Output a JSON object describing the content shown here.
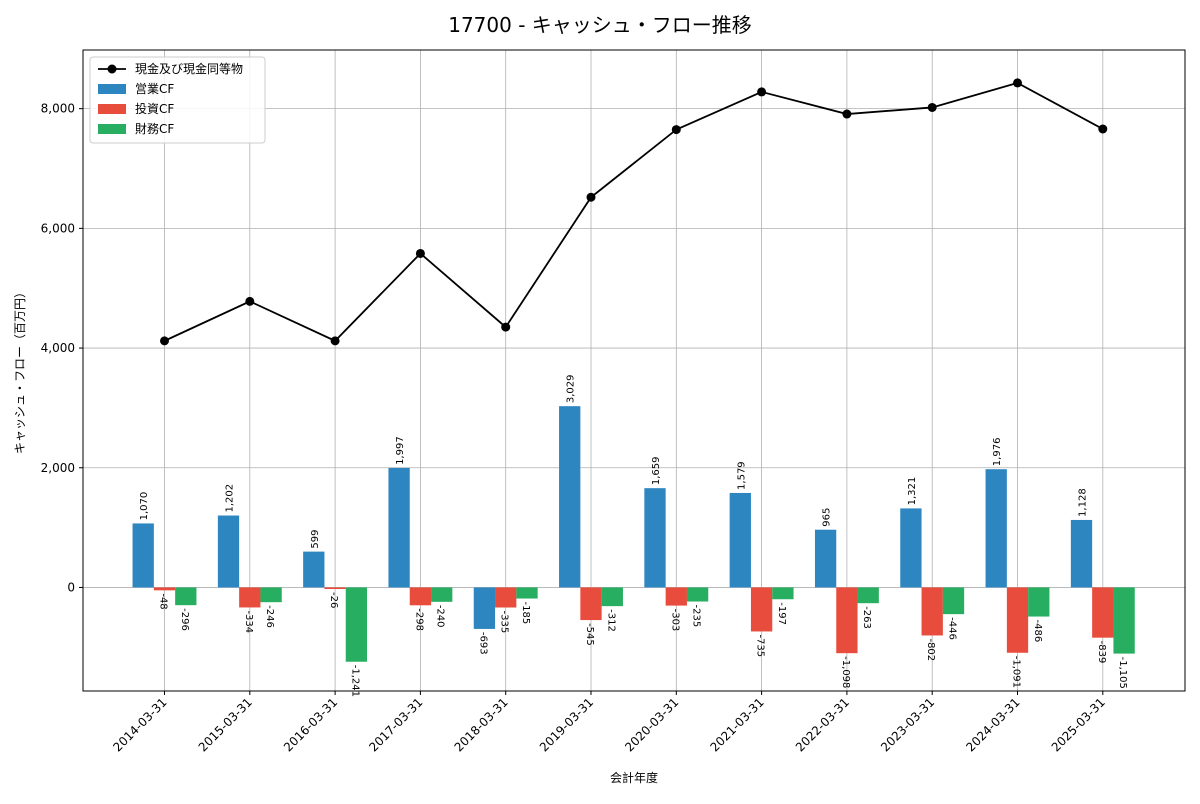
{
  "chart_data": {
    "type": "bar",
    "title": "17700 - キャッシュ・フロー推移",
    "xlabel": "会計年度",
    "ylabel": "キャッシュ・フロー（百万円）",
    "categories": [
      "2014-03-31",
      "2015-03-31",
      "2016-03-31",
      "2017-03-31",
      "2018-03-31",
      "2019-03-31",
      "2020-03-31",
      "2021-03-31",
      "2022-03-31",
      "2023-03-31",
      "2024-03-31",
      "2025-03-31"
    ],
    "ylim": [
      -1730,
      8980
    ],
    "yticks": [
      0,
      2000,
      4000,
      6000,
      8000
    ],
    "ytick_labels": [
      "0",
      "2,000",
      "4,000",
      "6,000",
      "8,000"
    ],
    "grid": true,
    "legend_position": "top-left",
    "series": [
      {
        "name": "営業CF",
        "kind": "bar",
        "color": "#2e86c1",
        "values": [
          1070,
          1202,
          599,
          1997,
          -693,
          3029,
          1659,
          1579,
          965,
          1321,
          1976,
          1128
        ],
        "labels": [
          "1,070",
          "1,202",
          "599",
          "1,997",
          "-693",
          "3,029",
          "1,659",
          "1,579",
          "965",
          "1,321",
          "1,976",
          "1,128"
        ]
      },
      {
        "name": "投資CF",
        "kind": "bar",
        "color": "#e74c3c",
        "values": [
          -48,
          -334,
          -26,
          -298,
          -335,
          -545,
          -303,
          -735,
          -1098,
          -802,
          -1091,
          -839
        ],
        "labels": [
          "-48",
          "-334",
          "-26",
          "-298",
          "-335",
          "-545",
          "-303",
          "-735",
          "-1,098",
          "-802",
          "-1,091",
          "-839"
        ]
      },
      {
        "name": "財務CF",
        "kind": "bar",
        "color": "#27ae60",
        "values": [
          -296,
          -246,
          -1241,
          -240,
          -185,
          -312,
          -235,
          -197,
          -263,
          -446,
          -486,
          -1105
        ],
        "labels": [
          "-296",
          "-246",
          "-1,241",
          "-240",
          "-185",
          "-312",
          "-235",
          "-197",
          "-263",
          "-446",
          "-486",
          "-1,105"
        ]
      },
      {
        "name": "現金及び現金同等物",
        "kind": "line",
        "color": "#000000",
        "values": [
          4120,
          4780,
          4120,
          5580,
          4350,
          6520,
          7650,
          8280,
          7910,
          8020,
          8430,
          7660
        ]
      }
    ]
  }
}
